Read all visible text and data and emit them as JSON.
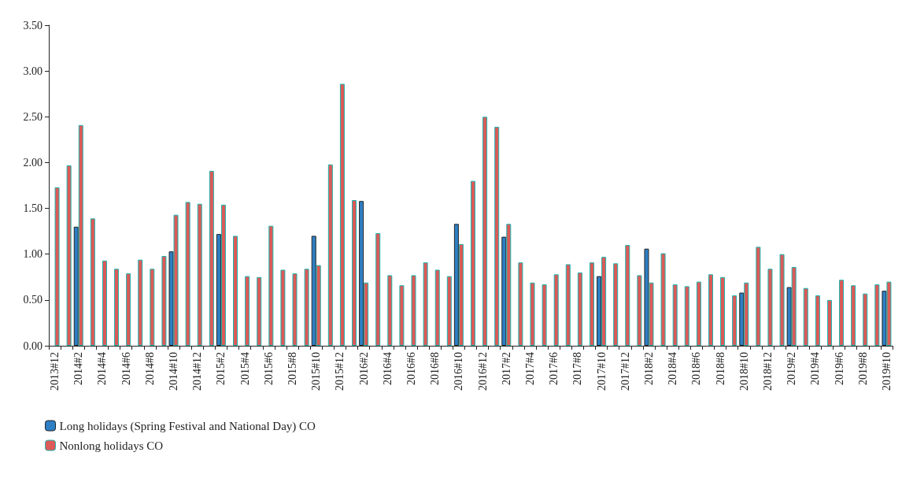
{
  "chart_data": {
    "type": "bar",
    "categories": [
      "2013#12",
      null,
      "2014#2",
      null,
      "2014#4",
      null,
      "2014#6",
      null,
      "2014#8",
      null,
      "2014#10",
      null,
      "2014#12",
      null,
      "2015#2",
      null,
      "2015#4",
      null,
      "2015#6",
      null,
      "2015#8",
      null,
      "2015#10",
      null,
      "2015#12",
      null,
      "2016#2",
      null,
      "2016#4",
      null,
      "2016#6",
      null,
      "2016#8",
      null,
      "2016#10",
      null,
      "2016#12",
      null,
      "2017#2",
      null,
      "2017#4",
      null,
      "2017#6",
      null,
      "2017#8",
      null,
      "2017#10",
      null,
      "2017#12",
      null,
      "2018#2",
      null,
      "2018#4",
      null,
      "2018#6",
      null,
      "2018#8",
      null,
      "2018#10",
      null,
      "2018#12",
      null,
      "2019#2",
      null,
      "2019#4",
      null,
      "2019#6",
      null,
      "2019#8",
      null,
      "2019#10"
    ],
    "series": [
      {
        "name": "Long holidays (Spring Festival and National Day) CO",
        "color": "#2e7fc4",
        "values": [
          null,
          null,
          1.3,
          null,
          null,
          null,
          null,
          null,
          null,
          null,
          1.03,
          null,
          null,
          null,
          1.22,
          null,
          null,
          null,
          null,
          null,
          null,
          null,
          1.2,
          null,
          null,
          null,
          1.58,
          null,
          null,
          null,
          null,
          null,
          null,
          null,
          1.33,
          null,
          null,
          null,
          1.19,
          null,
          null,
          null,
          null,
          null,
          null,
          null,
          0.76,
          null,
          null,
          null,
          1.06,
          null,
          null,
          null,
          null,
          null,
          null,
          null,
          0.58,
          null,
          null,
          null,
          0.64,
          null,
          null,
          null,
          null,
          null,
          null,
          null,
          0.6
        ]
      },
      {
        "name": "Nonlong holidays CO",
        "color": "#dc5a57",
        "values": [
          1.73,
          1.97,
          2.41,
          1.39,
          0.93,
          0.84,
          0.79,
          0.94,
          0.84,
          0.98,
          1.43,
          1.57,
          1.55,
          1.91,
          1.54,
          1.2,
          0.76,
          0.75,
          1.31,
          0.83,
          0.79,
          0.84,
          0.88,
          1.98,
          2.86,
          1.59,
          0.69,
          1.23,
          0.77,
          0.66,
          0.77,
          0.91,
          0.83,
          0.76,
          1.11,
          1.8,
          2.5,
          2.39,
          1.33,
          0.91,
          0.69,
          0.67,
          0.78,
          0.89,
          0.8,
          0.91,
          0.97,
          0.9,
          1.1,
          0.77,
          0.69,
          1.01,
          0.67,
          0.65,
          0.7,
          0.78,
          0.75,
          0.55,
          0.69,
          1.08,
          0.84,
          1.0,
          0.86,
          0.63,
          0.55,
          0.5,
          0.72,
          0.66,
          0.57,
          0.67,
          0.7
        ]
      }
    ],
    "ylim": [
      0,
      3.5
    ],
    "yticks": [
      {
        "value": 0,
        "label": "0.00"
      },
      {
        "value": 0.5,
        "label": "0.50"
      },
      {
        "value": 1,
        "label": "1.00"
      },
      {
        "value": 1.5,
        "label": "1.50"
      },
      {
        "value": 2,
        "label": "2.00"
      },
      {
        "value": 2.5,
        "label": "2.50"
      },
      {
        "value": 3,
        "label": "3.00"
      },
      {
        "value": 3.5,
        "label": "3.50"
      }
    ],
    "grid": false,
    "legend": "bottom left"
  }
}
